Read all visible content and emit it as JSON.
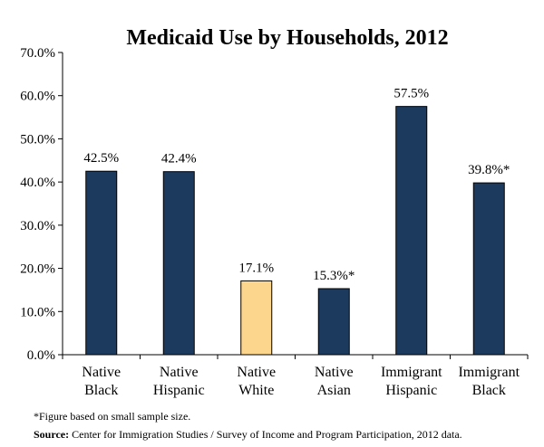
{
  "chart_data": {
    "type": "bar",
    "title": "Medicaid Use by Households, 2012",
    "categories": [
      [
        "Native",
        "Black"
      ],
      [
        "Native",
        "Hispanic"
      ],
      [
        "Native",
        "White"
      ],
      [
        "Native",
        "Asian"
      ],
      [
        "Immigrant",
        "Hispanic"
      ],
      [
        "Immigrant",
        "Black"
      ]
    ],
    "values": [
      42.5,
      42.4,
      17.1,
      15.3,
      57.5,
      39.8
    ],
    "data_labels": [
      "42.5%",
      "42.4%",
      "17.1%",
      "15.3%*",
      "57.5%",
      "39.8%*"
    ],
    "bar_colors": [
      "#1c3a5e",
      "#1c3a5e",
      "#fcd68c",
      "#1c3a5e",
      "#1c3a5e",
      "#1c3a5e"
    ],
    "bar_border": "#000000",
    "ylim": [
      0,
      70
    ],
    "yticks": [
      0,
      10,
      20,
      30,
      40,
      50,
      60,
      70
    ],
    "ytick_labels": [
      "0.0%",
      "10.0%",
      "20.0%",
      "30.0%",
      "40.0%",
      "50.0%",
      "60.0%",
      "70.0%"
    ],
    "xlabel": "",
    "ylabel": "",
    "grid": false
  },
  "footnote": {
    "note": "*Figure based on small sample size.",
    "source_label": "Source:",
    "source_text": " Center for Immigration Studies / Survey of Income and Program Participation, 2012 data."
  }
}
